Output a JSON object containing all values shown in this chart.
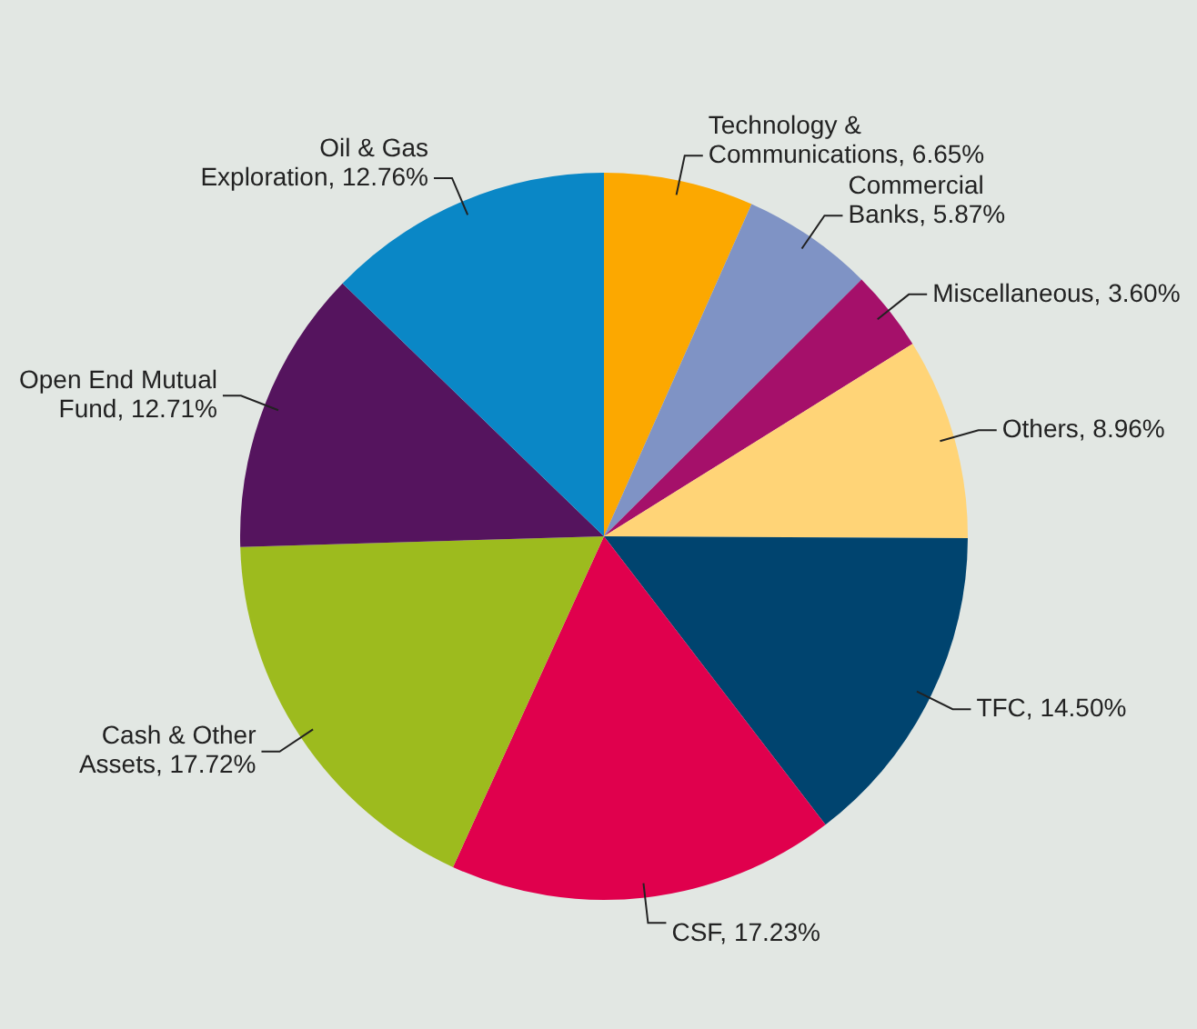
{
  "chart_data": {
    "type": "pie",
    "categories": [
      "Technology & Communications",
      "Commercial Banks",
      "Miscellaneous",
      "Others",
      "TFC",
      "CSF",
      "Cash & Other Assets",
      "Open End Mutual Fund",
      "Oil & Gas Exploration"
    ],
    "values": [
      6.65,
      5.87,
      3.6,
      8.96,
      14.5,
      17.23,
      17.72,
      12.71,
      12.76
    ],
    "value_labels": [
      "6.65%",
      "5.87%",
      "3.60%",
      "8.96%",
      "14.50%",
      "17.23%",
      "17.72%",
      "12.71%",
      "12.76%"
    ],
    "colors": [
      "#fca800",
      "#7f93c5",
      "#a5106a",
      "#ffd477",
      "#00446f",
      "#e0004d",
      "#9dbb1e",
      "#55145e",
      "#0a87c6"
    ],
    "legend": false
  }
}
